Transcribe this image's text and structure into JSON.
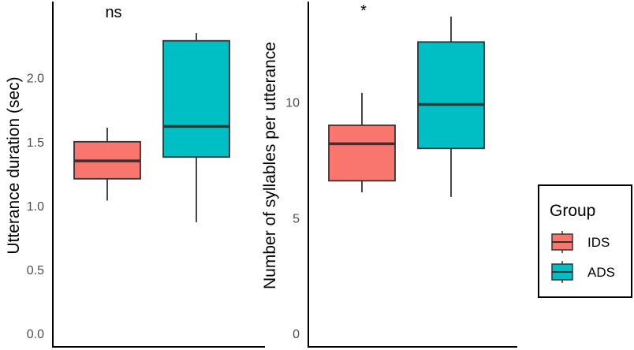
{
  "chart_data": [
    {
      "type": "box",
      "ylabel": "Utterance duration (sec)",
      "yticks": [
        0.0,
        0.5,
        1.0,
        1.5,
        2.0
      ],
      "ytick_labels": [
        "0.0",
        "0.5",
        "1.0",
        "1.5",
        "2.0"
      ],
      "ylim": [
        0,
        2.35
      ],
      "significance": "ns",
      "boxes": [
        {
          "group": "IDS",
          "whisker_low": 1.04,
          "q1": 1.21,
          "median": 1.35,
          "q3": 1.5,
          "whisker_high": 1.61
        },
        {
          "group": "ADS",
          "whisker_low": 0.87,
          "q1": 1.38,
          "median": 1.62,
          "q3": 2.29,
          "whisker_high": 2.35
        }
      ]
    },
    {
      "type": "box",
      "ylabel": "Number of syllables per utterance",
      "yticks": [
        0,
        5,
        10
      ],
      "ytick_labels": [
        "0",
        "5",
        "10"
      ],
      "ylim": [
        0,
        13.7
      ],
      "significance": "*",
      "boxes": [
        {
          "group": "IDS",
          "whisker_low": 6.1,
          "q1": 6.6,
          "median": 8.2,
          "q3": 9.0,
          "whisker_high": 10.4
        },
        {
          "group": "ADS",
          "whisker_low": 5.9,
          "q1": 8.0,
          "median": 9.9,
          "q3": 12.6,
          "whisker_high": 13.7
        }
      ]
    }
  ],
  "legend": {
    "title": "Group",
    "items": [
      {
        "label": "IDS",
        "color": "#F8766D"
      },
      {
        "label": "ADS",
        "color": "#00BFC4"
      }
    ]
  },
  "colors": {
    "IDS": "#F8766D",
    "ADS": "#00BFC4",
    "outline": "#333333",
    "axis": "#000000"
  }
}
